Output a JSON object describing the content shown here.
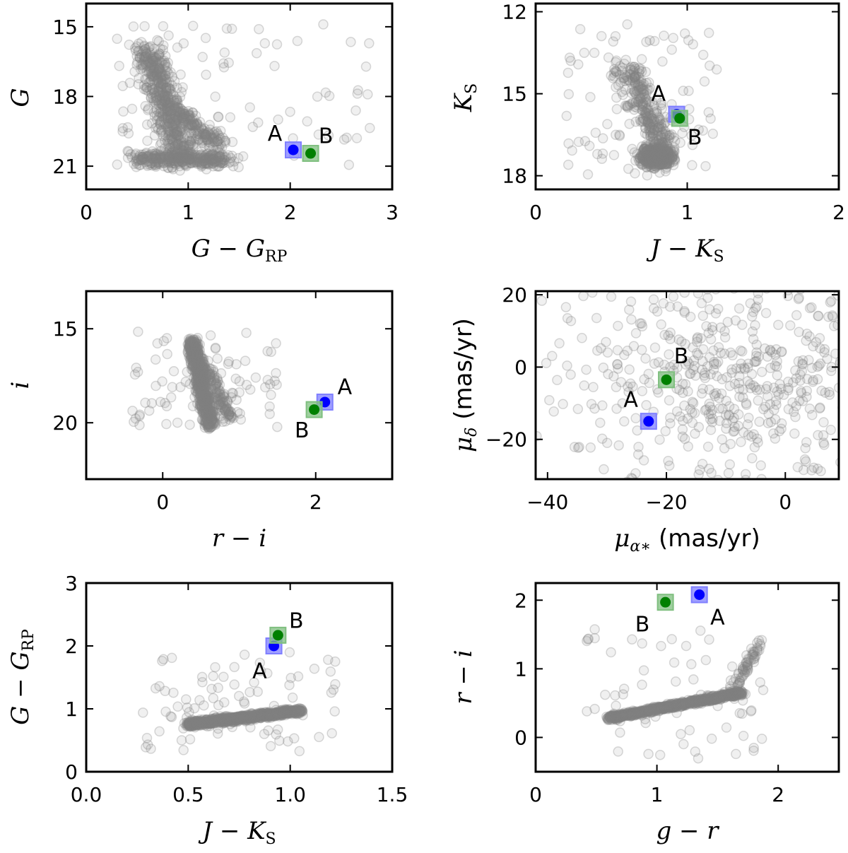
{
  "colors": {
    "field": "#808080",
    "star_A": "#0000ff",
    "star_B": "#008000",
    "marker_A": "#7f7fff",
    "marker_B": "#7fbf7f"
  },
  "chart_data": [
    {
      "type": "scatter",
      "title": "",
      "xlabel": "G − G_RP",
      "ylabel": "G",
      "xlim": [
        0,
        3
      ],
      "ylim": [
        22,
        14
      ],
      "y_inverted": true,
      "xticks": [
        "0",
        "1",
        "2",
        "3"
      ],
      "yticks": [
        "15",
        "18",
        "21"
      ],
      "field": {
        "clusters": [
          {
            "x0": 0.6,
            "y0": 15.9,
            "x1": 0.95,
            "y1": 20.7,
            "w": 0.22,
            "n": 500
          },
          {
            "x0": 0.5,
            "y0": 20.7,
            "x1": 1.4,
            "y1": 20.7,
            "w": 0.18,
            "n": 320
          },
          {
            "x0": 0.85,
            "y0": 18.5,
            "x1": 1.3,
            "y1": 20.1,
            "w": 0.15,
            "n": 160
          }
        ],
        "halo": {
          "x": [
            0.3,
            2.8
          ],
          "y": [
            14.8,
            21.1
          ],
          "n": 90
        }
      },
      "stars": [
        {
          "name": "A",
          "x": 2.03,
          "y": 20.3,
          "label_x": 1.85,
          "label_y": 19.6
        },
        {
          "name": "B",
          "x": 2.2,
          "y": 20.45,
          "label_x": 2.35,
          "label_y": 19.7
        }
      ]
    },
    {
      "type": "scatter",
      "title": "",
      "xlabel": "J − K_S",
      "ylabel": "K_S",
      "xlim": [
        0,
        2
      ],
      "ylim": [
        18.5,
        11.7
      ],
      "y_inverted": true,
      "xticks": [
        "0",
        "1",
        "2"
      ],
      "yticks": [
        "12",
        "15",
        "18"
      ],
      "field": {
        "clusters": [
          {
            "x0": 0.8,
            "y0": 17.3,
            "x1": 0.8,
            "y1": 17.3,
            "w": 0.2,
            "n": 700
          },
          {
            "x0": 0.6,
            "y0": 14.0,
            "x1": 0.85,
            "y1": 17.0,
            "w": 0.2,
            "n": 260
          }
        ],
        "halo": {
          "x": [
            0.2,
            1.2
          ],
          "y": [
            12.3,
            18.0
          ],
          "n": 90
        }
      },
      "stars": [
        {
          "name": "A",
          "x": 0.93,
          "y": 15.75,
          "label_x": 0.81,
          "label_y": 15.0
        },
        {
          "name": "B",
          "x": 0.95,
          "y": 15.9,
          "label_x": 1.05,
          "label_y": 16.6
        }
      ]
    },
    {
      "type": "scatter",
      "title": "",
      "xlabel": "r − i",
      "ylabel": "i",
      "xlim": [
        -1,
        3
      ],
      "ylim": [
        23,
        13
      ],
      "y_inverted": true,
      "xticks": [
        "0",
        "2"
      ],
      "yticks": [
        "15",
        "20"
      ],
      "field": {
        "clusters": [
          {
            "x0": 0.38,
            "y0": 15.6,
            "x1": 0.62,
            "y1": 20.2,
            "w": 0.08,
            "n": 700
          },
          {
            "x0": 0.45,
            "y0": 16.5,
            "x1": 0.9,
            "y1": 19.8,
            "w": 0.12,
            "n": 160
          }
        ],
        "halo": {
          "x": [
            -0.4,
            1.5
          ],
          "y": [
            15.0,
            20.3
          ],
          "n": 80
        }
      },
      "stars": [
        {
          "name": "A",
          "x": 2.12,
          "y": 18.9,
          "label_x": 2.38,
          "label_y": 18.1
        },
        {
          "name": "B",
          "x": 1.98,
          "y": 19.3,
          "label_x": 1.82,
          "label_y": 20.4
        }
      ]
    },
    {
      "type": "scatter",
      "title": "",
      "xlabel": "μ_α* (mas/yr)",
      "ylabel": "μ_δ (mas/yr)",
      "xlim": [
        -42,
        9
      ],
      "ylim": [
        -31,
        21
      ],
      "y_inverted": false,
      "xticks": [
        "−40",
        "−20",
        "0"
      ],
      "yticks": [
        "20",
        "0",
        "−20"
      ],
      "field": {
        "clusters": [
          {
            "x0": -12.0,
            "y0": -1.0,
            "x1": -3.0,
            "y1": -1.0,
            "w": 3.0,
            "n": 600
          }
        ],
        "halo": {
          "x": [
            -18,
            7
          ],
          "y": [
            -19,
            6
          ],
          "n": 80
        }
      },
      "stars": [
        {
          "name": "A",
          "x": -23.0,
          "y": -15.0,
          "label_x": -26.0,
          "label_y": -9.0
        },
        {
          "name": "B",
          "x": -20.0,
          "y": -3.5,
          "label_x": -17.5,
          "label_y": 3.0
        }
      ]
    },
    {
      "type": "scatter",
      "title": "",
      "xlabel": "J − K_S",
      "ylabel": "G − G_RP",
      "xlim": [
        0,
        1.5
      ],
      "ylim": [
        0,
        3
      ],
      "y_inverted": false,
      "xticks": [
        "0.0",
        "0.5",
        "1.0",
        "1.5"
      ],
      "yticks": [
        "0",
        "1",
        "2",
        "3"
      ],
      "field": {
        "clusters": [
          {
            "x0": 0.5,
            "y0": 0.75,
            "x1": 1.05,
            "y1": 0.97,
            "w": 0.06,
            "n": 900
          }
        ],
        "halo": {
          "x": [
            0.25,
            1.25
          ],
          "y": [
            0.3,
            1.9
          ],
          "n": 90
        }
      },
      "stars": [
        {
          "name": "A",
          "x": 0.92,
          "y": 2.0,
          "label_x": 0.85,
          "label_y": 1.6
        },
        {
          "name": "B",
          "x": 0.94,
          "y": 2.17,
          "label_x": 1.03,
          "label_y": 2.4
        }
      ]
    },
    {
      "type": "scatter",
      "title": "",
      "xlabel": "g − r",
      "ylabel": "r − i",
      "xlim": [
        0,
        2.5
      ],
      "ylim": [
        -0.5,
        2.25
      ],
      "y_inverted": false,
      "xticks": [
        "0",
        "1",
        "2"
      ],
      "yticks": [
        "0",
        "1",
        "2"
      ],
      "field": {
        "clusters": [
          {
            "x0": 0.6,
            "y0": 0.28,
            "x1": 1.7,
            "y1": 0.65,
            "w": 0.05,
            "n": 800
          },
          {
            "x0": 1.6,
            "y0": 0.6,
            "x1": 1.85,
            "y1": 1.4,
            "w": 0.08,
            "n": 70
          }
        ],
        "halo": {
          "x": [
            0.4,
            1.9
          ],
          "y": [
            -0.4,
            1.6
          ],
          "n": 60
        }
      },
      "stars": [
        {
          "name": "A",
          "x": 1.35,
          "y": 2.08,
          "label_x": 1.5,
          "label_y": 1.75
        },
        {
          "name": "B",
          "x": 1.07,
          "y": 1.97,
          "label_x": 0.88,
          "label_y": 1.65
        }
      ]
    }
  ]
}
